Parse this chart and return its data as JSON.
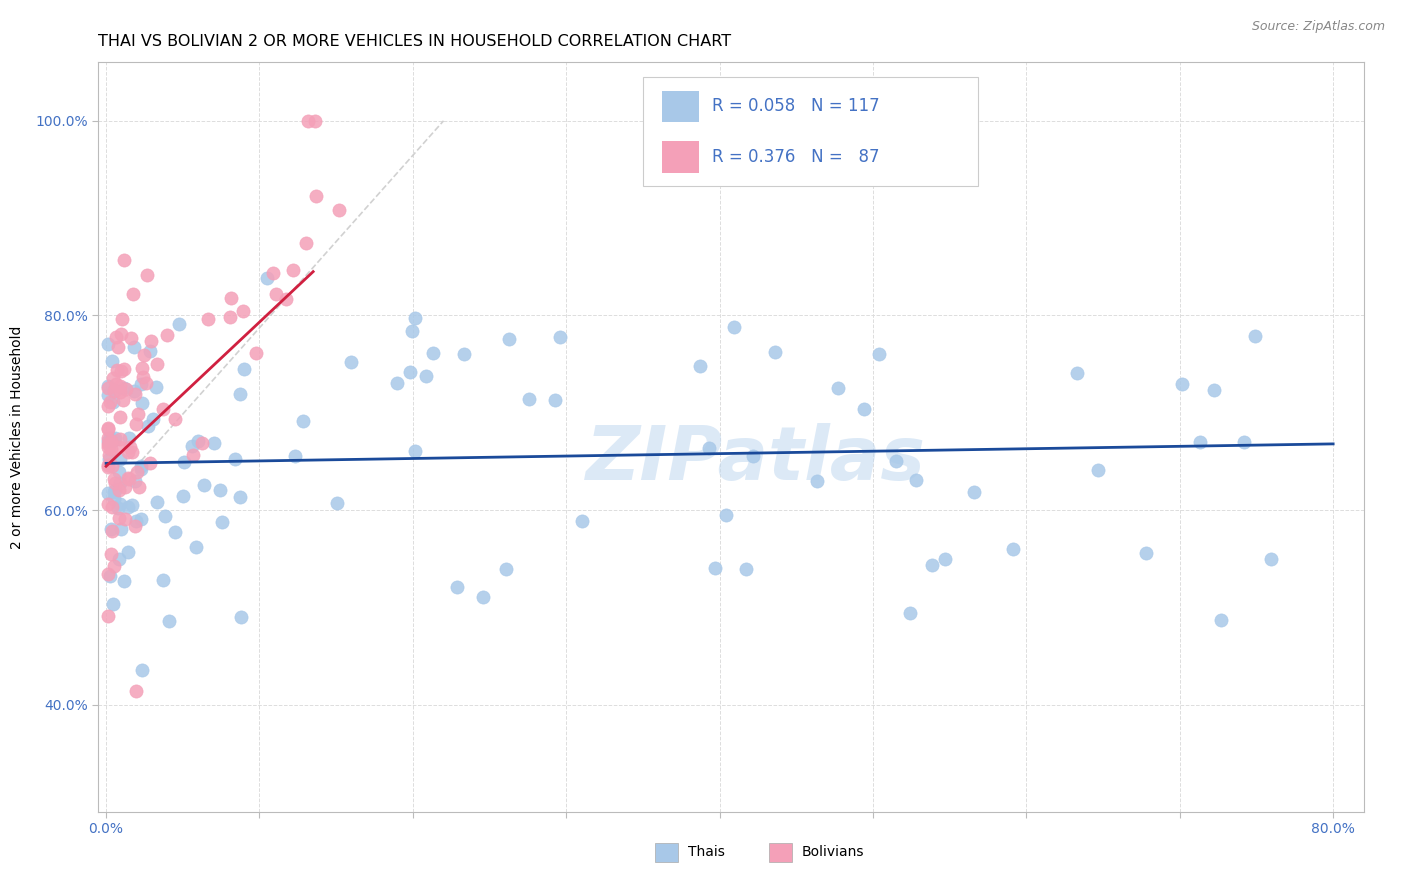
{
  "title": "THAI VS BOLIVIAN 2 OR MORE VEHICLES IN HOUSEHOLD CORRELATION CHART",
  "source": "Source: ZipAtlas.com",
  "ylabel": "2 or more Vehicles in Household",
  "xlim": [
    -0.005,
    0.82
  ],
  "ylim": [
    0.29,
    1.06
  ],
  "xtick_positions": [
    0.0,
    0.1,
    0.2,
    0.3,
    0.4,
    0.5,
    0.6,
    0.7,
    0.8
  ],
  "xticklabels": [
    "0.0%",
    "",
    "",
    "",
    "",
    "",
    "",
    "",
    "80.0%"
  ],
  "ytick_positions": [
    0.4,
    0.6,
    0.8,
    1.0
  ],
  "yticklabels": [
    "40.0%",
    "60.0%",
    "80.0%",
    "100.0%"
  ],
  "blue_scatter_color": "#a8c8e8",
  "pink_scatter_color": "#f4a0b8",
  "blue_line_color": "#1a4a9a",
  "pink_line_color": "#d02040",
  "diag_line_color": "#cccccc",
  "watermark_color": "#c0d8f0",
  "tick_label_color": "#4472c4",
  "grid_color": "#dddddd",
  "title_fontsize": 11.5,
  "axis_label_fontsize": 10,
  "tick_fontsize": 10,
  "legend_fontsize": 12
}
